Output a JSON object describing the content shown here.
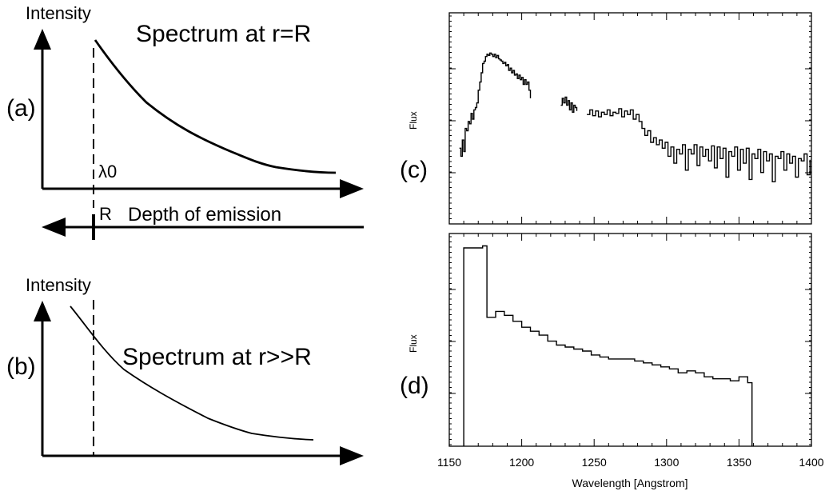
{
  "left": {
    "a": {
      "y_label": "Intensity",
      "panel_label": "(a)",
      "title": "Spectrum at r=R",
      "lambda_label": "λ0",
      "depth_marker": "R",
      "depth_label": "Depth of emission"
    },
    "b": {
      "y_label": "Intensity",
      "panel_label": "(b)",
      "title": "Spectrum at r>>R"
    }
  },
  "right": {
    "c": {
      "panel_label": "(c)",
      "y_label": "Flux"
    },
    "d": {
      "panel_label": "(d)",
      "y_label": "Flux"
    },
    "x_label": "Wavelength [Angstrom]",
    "x_ticks": [
      "1150",
      "1200",
      "1250",
      "1300",
      "1350",
      "1400"
    ]
  },
  "chart_data": [
    {
      "type": "line",
      "panel": "(c)",
      "ylabel": "Flux",
      "xlabel": "",
      "xlim": [
        1150,
        1400
      ],
      "segments": [
        {
          "x": [
            1157,
            1158,
            1159,
            1160,
            1161,
            1162,
            1163,
            1164,
            1165,
            1166,
            1167,
            1168,
            1169,
            1170,
            1171,
            1172,
            1173,
            1174,
            1175,
            1176,
            1177,
            1178,
            1179,
            1180,
            1181,
            1182,
            1183,
            1184,
            1185,
            1186,
            1187,
            1188,
            1189,
            1190,
            1191,
            1192,
            1193,
            1194,
            1195,
            1196,
            1197,
            1198,
            1199,
            1200,
            1201,
            1202,
            1203,
            1204,
            1205,
            1206
          ],
          "y": [
            0.55,
            0.48,
            0.62,
            0.52,
            0.72,
            0.7,
            0.78,
            0.76,
            0.85,
            0.8,
            0.88,
            0.9,
            0.94,
            1.05,
            1.12,
            1.2,
            1.28,
            1.3,
            1.34,
            1.36,
            1.35,
            1.37,
            1.36,
            1.34,
            1.36,
            1.33,
            1.35,
            1.32,
            1.31,
            1.3,
            1.28,
            1.29,
            1.26,
            1.27,
            1.22,
            1.24,
            1.2,
            1.22,
            1.18,
            1.19,
            1.15,
            1.18,
            1.14,
            1.16,
            1.1,
            1.14,
            1.1,
            1.12,
            1.05,
            0.98
          ]
        },
        {
          "x": [
            1227,
            1228,
            1229,
            1230,
            1231,
            1232,
            1233,
            1234,
            1235,
            1236,
            1237,
            1238
          ],
          "y": [
            0.92,
            0.98,
            0.94,
            0.99,
            0.92,
            0.96,
            0.88,
            0.94,
            0.86,
            0.92,
            0.9,
            0.87
          ]
        },
        {
          "x": [
            1245,
            1247,
            1249,
            1251,
            1253,
            1255,
            1257,
            1259,
            1261,
            1263,
            1265,
            1267,
            1269,
            1271,
            1273,
            1275,
            1277,
            1279,
            1281,
            1283,
            1285,
            1287,
            1289,
            1291,
            1293,
            1295,
            1297,
            1299,
            1301,
            1303,
            1305,
            1307,
            1309,
            1311,
            1313,
            1315,
            1317,
            1319,
            1321,
            1323,
            1325,
            1327,
            1329,
            1331,
            1333,
            1335,
            1337,
            1339,
            1341,
            1343,
            1345,
            1347,
            1349,
            1351,
            1353,
            1355,
            1357,
            1359,
            1361,
            1363,
            1365,
            1367,
            1369,
            1371,
            1373,
            1375,
            1377,
            1379,
            1381,
            1383,
            1385,
            1387,
            1389,
            1391,
            1393,
            1395,
            1397,
            1399
          ],
          "y": [
            0.84,
            0.88,
            0.83,
            0.87,
            0.82,
            0.86,
            0.84,
            0.88,
            0.83,
            0.86,
            0.85,
            0.89,
            0.82,
            0.87,
            0.84,
            0.88,
            0.8,
            0.84,
            0.78,
            0.72,
            0.66,
            0.7,
            0.6,
            0.64,
            0.58,
            0.62,
            0.55,
            0.6,
            0.48,
            0.56,
            0.42,
            0.54,
            0.5,
            0.58,
            0.36,
            0.54,
            0.5,
            0.58,
            0.4,
            0.56,
            0.48,
            0.54,
            0.44,
            0.57,
            0.38,
            0.56,
            0.46,
            0.55,
            0.3,
            0.52,
            0.48,
            0.56,
            0.36,
            0.54,
            0.42,
            0.55,
            0.28,
            0.5,
            0.46,
            0.54,
            0.34,
            0.52,
            0.44,
            0.5,
            0.26,
            0.48,
            0.46,
            0.52,
            0.36,
            0.5,
            0.42,
            0.48,
            0.3,
            0.46,
            0.44,
            0.5,
            0.32,
            0.45
          ]
        }
      ]
    },
    {
      "type": "line",
      "panel": "(d)",
      "ylabel": "Flux",
      "xlabel": "Wavelength [Angstrom]",
      "xlim": [
        1150,
        1400
      ],
      "x": [
        1160,
        1163,
        1167,
        1170,
        1173,
        1176,
        1179,
        1182,
        1185,
        1188,
        1191,
        1194,
        1197,
        1200,
        1203,
        1206,
        1209,
        1212,
        1215,
        1218,
        1221,
        1224,
        1227,
        1230,
        1233,
        1236,
        1239,
        1242,
        1245,
        1248,
        1251,
        1254,
        1257,
        1260,
        1263,
        1266,
        1269,
        1272,
        1275,
        1278,
        1281,
        1284,
        1287,
        1290,
        1293,
        1296,
        1299,
        1302,
        1305,
        1308,
        1311,
        1314,
        1317,
        1320,
        1323,
        1326,
        1329,
        1332,
        1335,
        1338,
        1341,
        1344,
        1347,
        1350,
        1353,
        1356,
        1359
      ],
      "y": [
        1.0,
        1.0,
        1.0,
        1.0,
        1.01,
        0.65,
        0.65,
        0.68,
        0.68,
        0.66,
        0.66,
        0.63,
        0.63,
        0.6,
        0.6,
        0.58,
        0.58,
        0.56,
        0.56,
        0.53,
        0.53,
        0.51,
        0.51,
        0.5,
        0.5,
        0.49,
        0.49,
        0.48,
        0.48,
        0.46,
        0.46,
        0.45,
        0.45,
        0.44,
        0.44,
        0.44,
        0.44,
        0.44,
        0.44,
        0.43,
        0.43,
        0.42,
        0.42,
        0.41,
        0.41,
        0.4,
        0.4,
        0.39,
        0.39,
        0.37,
        0.37,
        0.38,
        0.38,
        0.37,
        0.37,
        0.35,
        0.35,
        0.34,
        0.34,
        0.34,
        0.34,
        0.33,
        0.33,
        0.35,
        0.35,
        0.32,
        0.32
      ]
    }
  ]
}
